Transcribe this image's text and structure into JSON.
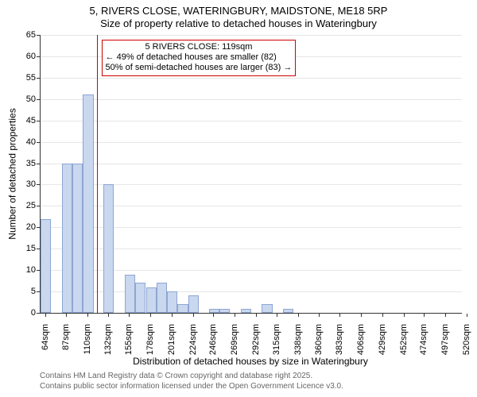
{
  "title_line1": "5, RIVERS CLOSE, WATERINGBURY, MAIDSTONE, ME18 5RP",
  "title_line2": "Size of property relative to detached houses in Wateringbury",
  "y_axis_title": "Number of detached properties",
  "x_axis_title": "Distribution of detached houses by size in Wateringbury",
  "credits_line1": "Contains HM Land Registry data © Crown copyright and database right 2025.",
  "credits_line2": "Contains public sector information licensed under the Open Government Licence v3.0.",
  "credits_color": "#666666",
  "chart": {
    "type": "histogram",
    "background_color": "#ffffff",
    "grid_color": "#e6e6e6",
    "axis_color": "#333333",
    "bar_fill": "#c9d7ef",
    "bar_stroke": "#8ea6d1",
    "marker_color": "#cc0000",
    "annotation_border": "#cc0000",
    "xlim": [
      64,
      520
    ],
    "ylim": [
      0,
      65
    ],
    "ytick_step": 5,
    "yticks": [
      0,
      5,
      10,
      15,
      20,
      25,
      30,
      35,
      40,
      45,
      50,
      55,
      60,
      65
    ],
    "bar_x_step": 11.4,
    "x_major_step": 2,
    "bars": [
      {
        "x": 64,
        "h": 22,
        "label": "64sqm"
      },
      {
        "x": 75.4,
        "h": 0,
        "label": ""
      },
      {
        "x": 87,
        "h": 35,
        "label": "87sqm"
      },
      {
        "x": 98.4,
        "h": 35,
        "label": ""
      },
      {
        "x": 110,
        "h": 51,
        "label": "110sqm"
      },
      {
        "x": 121.4,
        "h": 0,
        "label": ""
      },
      {
        "x": 132,
        "h": 30,
        "label": "132sqm"
      },
      {
        "x": 143.4,
        "h": 0,
        "label": ""
      },
      {
        "x": 155,
        "h": 9,
        "label": "155sqm"
      },
      {
        "x": 166.4,
        "h": 7,
        "label": ""
      },
      {
        "x": 178,
        "h": 6,
        "label": "178sqm"
      },
      {
        "x": 189.4,
        "h": 7,
        "label": ""
      },
      {
        "x": 201,
        "h": 5,
        "label": "201sqm"
      },
      {
        "x": 212.4,
        "h": 2,
        "label": ""
      },
      {
        "x": 224,
        "h": 4,
        "label": "224sqm"
      },
      {
        "x": 235.4,
        "h": 0,
        "label": ""
      },
      {
        "x": 246,
        "h": 1,
        "label": "246sqm"
      },
      {
        "x": 257.4,
        "h": 1,
        "label": ""
      },
      {
        "x": 269,
        "h": 0,
        "label": "269sqm"
      },
      {
        "x": 280.4,
        "h": 1,
        "label": ""
      },
      {
        "x": 292,
        "h": 0,
        "label": "292sqm"
      },
      {
        "x": 303.4,
        "h": 2,
        "label": ""
      },
      {
        "x": 315,
        "h": 0,
        "label": "315sqm"
      },
      {
        "x": 326.4,
        "h": 1,
        "label": ""
      },
      {
        "x": 338,
        "h": 0,
        "label": "338sqm"
      },
      {
        "x": 349.4,
        "h": 0,
        "label": ""
      },
      {
        "x": 360,
        "h": 0,
        "label": "360sqm"
      },
      {
        "x": 371.4,
        "h": 0,
        "label": ""
      },
      {
        "x": 383,
        "h": 0,
        "label": "383sqm"
      },
      {
        "x": 394.4,
        "h": 0,
        "label": ""
      },
      {
        "x": 406,
        "h": 0,
        "label": "406sqm"
      },
      {
        "x": 417.4,
        "h": 0,
        "label": ""
      },
      {
        "x": 429,
        "h": 0,
        "label": "429sqm"
      },
      {
        "x": 440.4,
        "h": 0,
        "label": ""
      },
      {
        "x": 452,
        "h": 0,
        "label": "452sqm"
      },
      {
        "x": 463.4,
        "h": 0,
        "label": ""
      },
      {
        "x": 474,
        "h": 0,
        "label": "474sqm"
      },
      {
        "x": 485.4,
        "h": 0,
        "label": ""
      },
      {
        "x": 497,
        "h": 0,
        "label": "497sqm"
      },
      {
        "x": 508.4,
        "h": 0,
        "label": ""
      },
      {
        "x": 520,
        "h": 0,
        "label": "520sqm"
      }
    ],
    "marker_x": 119,
    "annotation": {
      "line1": "5 RIVERS CLOSE: 119sqm",
      "line2": "← 49% of detached houses are smaller (82)",
      "line3": "50% of semi-detached houses are larger (83) →"
    }
  }
}
